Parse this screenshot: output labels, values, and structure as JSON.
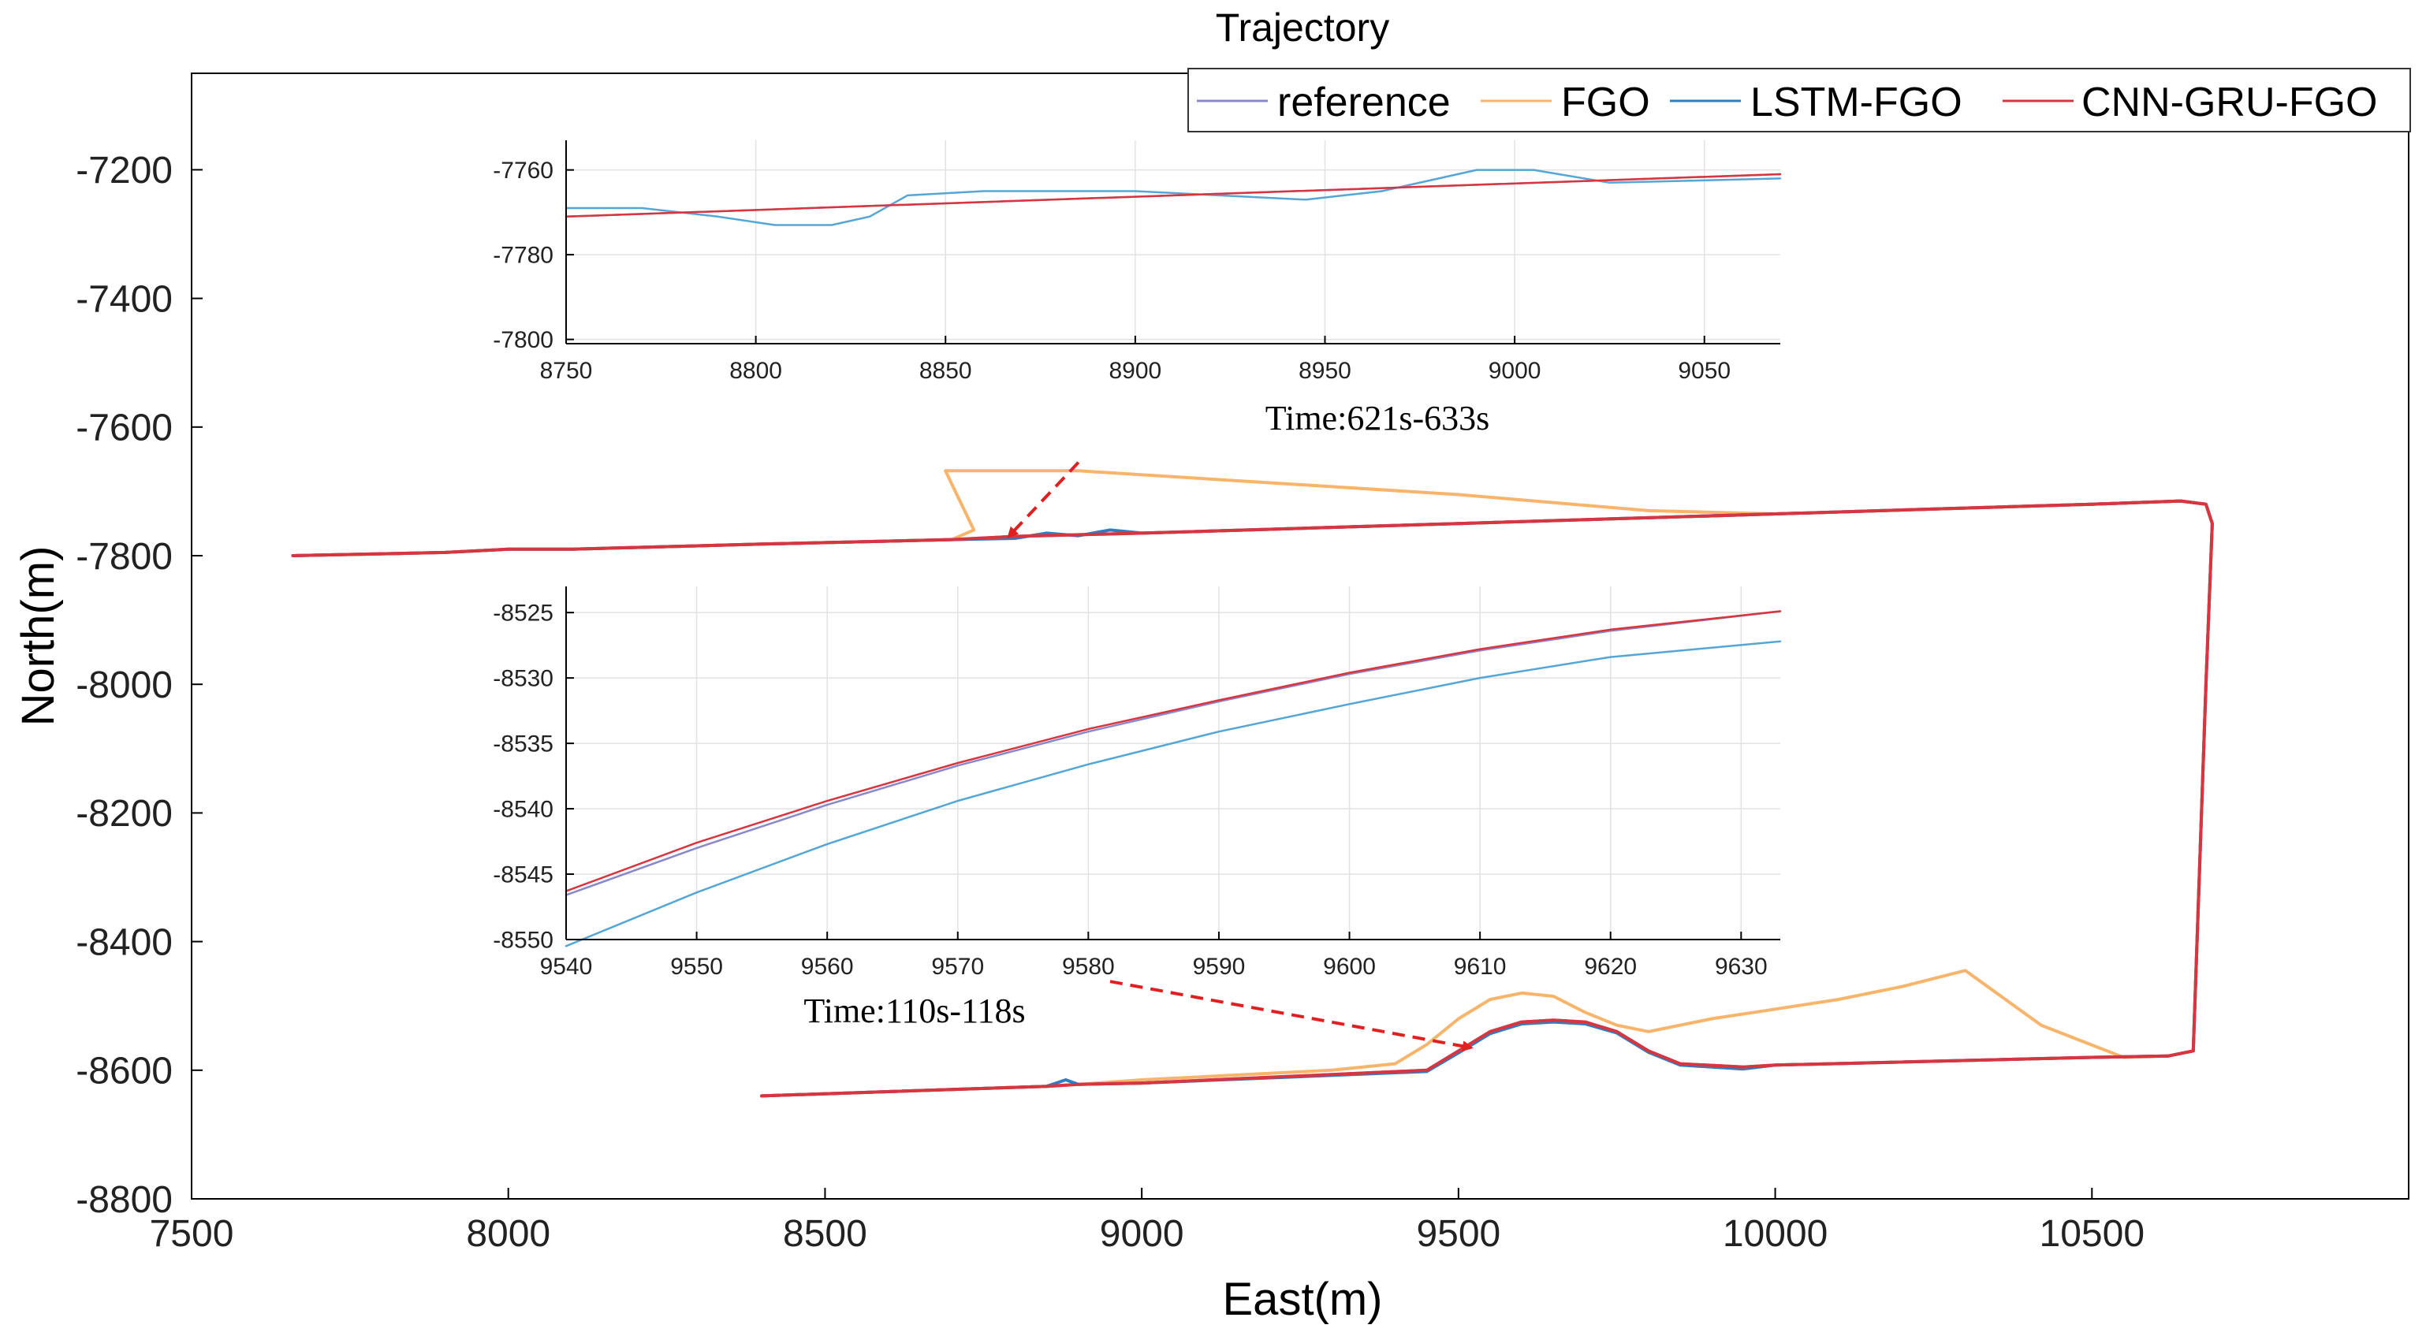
{
  "chart_data": [
    {
      "id": "main",
      "type": "line",
      "title": "Trajectory",
      "xlabel": "East(m)",
      "ylabel": "North(m)",
      "xlim": [
        7500,
        11000
      ],
      "ylim": [
        -8800,
        -7050
      ],
      "xticks": [
        7500,
        8000,
        8500,
        9000,
        9500,
        10000,
        10500
      ],
      "yticks": [
        -7200,
        -7400,
        -7600,
        -7800,
        -8000,
        -8200,
        -8400,
        -8600,
        -8800
      ],
      "grid": false,
      "legend": {
        "placement": "top-right",
        "orientation": "horizontal",
        "entries": [
          "reference",
          "FGO",
          "LSTM-FGO",
          "CNN-GRU-FGO"
        ]
      },
      "series": [
        {
          "name": "reference",
          "color": "#8888cc",
          "x": [
            7660,
            7900,
            8000,
            8100,
            8400,
            8700,
            8800,
            9000,
            9500,
            10000,
            10500,
            10640,
            10680,
            10690,
            10680,
            10660,
            10620,
            10500,
            10000,
            9950,
            9850,
            9800,
            9750,
            9700,
            9650,
            9600,
            9550,
            9500,
            9450,
            9000,
            8900,
            8850,
            8400
          ],
          "y": [
            -7800,
            -7795,
            -7790,
            -7790,
            -7782,
            -7775,
            -7770,
            -7765,
            -7750,
            -7735,
            -7720,
            -7715,
            -7720,
            -7750,
            -8000,
            -8570,
            -8578,
            -8580,
            -8592,
            -8595,
            -8590,
            -8570,
            -8540,
            -8525,
            -8522,
            -8525,
            -8540,
            -8570,
            -8600,
            -8620,
            -8622,
            -8625,
            -8640
          ]
        },
        {
          "name": "FGO",
          "color": "#f7b46a",
          "x": [
            7660,
            7900,
            8000,
            8100,
            8400,
            8700,
            8735,
            8690,
            8900,
            9500,
            9800,
            10000,
            10500,
            10640,
            10680,
            10690,
            10680,
            10660,
            10620,
            10550,
            10420,
            10300,
            10200,
            10100,
            10000,
            9900,
            9800,
            9750,
            9700,
            9650,
            9600,
            9550,
            9500,
            9450,
            9400,
            9300,
            9000,
            8900,
            8850,
            8400
          ],
          "y": [
            -7800,
            -7795,
            -7790,
            -7790,
            -7782,
            -7775,
            -7760,
            -7668,
            -7668,
            -7705,
            -7730,
            -7735,
            -7720,
            -7715,
            -7720,
            -7750,
            -8000,
            -8570,
            -8578,
            -8580,
            -8530,
            -8445,
            -8470,
            -8490,
            -8505,
            -8520,
            -8540,
            -8530,
            -8510,
            -8485,
            -8480,
            -8490,
            -8520,
            -8560,
            -8590,
            -8600,
            -8615,
            -8622,
            -8625,
            -8640
          ]
        },
        {
          "name": "LSTM-FGO",
          "color": "#2e7fc1",
          "x": [
            7660,
            7900,
            8000,
            8100,
            8400,
            8700,
            8800,
            8850,
            8900,
            8950,
            9000,
            9500,
            10000,
            10500,
            10640,
            10680,
            10690,
            10680,
            10660,
            10620,
            10500,
            10000,
            9950,
            9850,
            9800,
            9750,
            9700,
            9650,
            9600,
            9550,
            9500,
            9450,
            9000,
            8900,
            8880,
            8850,
            8400
          ],
          "y": [
            -7800,
            -7795,
            -7790,
            -7790,
            -7782,
            -7775,
            -7773,
            -7765,
            -7769,
            -7760,
            -7765,
            -7750,
            -7735,
            -7720,
            -7715,
            -7720,
            -7750,
            -8000,
            -8570,
            -8578,
            -8580,
            -8592,
            -8598,
            -8592,
            -8572,
            -8542,
            -8528,
            -8525,
            -8528,
            -8543,
            -8573,
            -8602,
            -8620,
            -8622,
            -8615,
            -8625,
            -8640
          ]
        },
        {
          "name": "CNN-GRU-FGO",
          "color": "#d9353f",
          "x": [
            7660,
            7900,
            8000,
            8100,
            8400,
            8700,
            8800,
            9000,
            9500,
            10000,
            10500,
            10640,
            10680,
            10690,
            10680,
            10660,
            10620,
            10500,
            10000,
            9950,
            9850,
            9800,
            9750,
            9700,
            9650,
            9600,
            9550,
            9500,
            9450,
            9000,
            8900,
            8850,
            8400
          ],
          "y": [
            -7800,
            -7795,
            -7790,
            -7790,
            -7782,
            -7775,
            -7770,
            -7765,
            -7750,
            -7735,
            -7720,
            -7715,
            -7720,
            -7750,
            -8000,
            -8570,
            -8578,
            -8580,
            -8592,
            -8595,
            -8590,
            -8570,
            -8540,
            -8525,
            -8522,
            -8525,
            -8540,
            -8570,
            -8600,
            -8620,
            -8622,
            -8625,
            -8640
          ]
        }
      ],
      "annotations": [
        {
          "text": "Time:621s-633s",
          "arrow_from": [
            8900,
            -7655
          ],
          "arrow_to": [
            8790,
            -7770
          ]
        },
        {
          "text": "Time:110s-118s",
          "arrow_from": [
            8950,
            -8462
          ],
          "arrow_to": [
            9520,
            -8565
          ]
        }
      ]
    },
    {
      "id": "inset-top",
      "type": "line",
      "title": "",
      "xlabel": "",
      "ylabel": "",
      "xlim": [
        8750,
        9070
      ],
      "ylim": [
        -7801,
        -7753
      ],
      "xticks": [
        8750,
        8800,
        8850,
        8900,
        8950,
        9000,
        9050
      ],
      "yticks": [
        -7760,
        -7780,
        -7800
      ],
      "grid": true,
      "series": [
        {
          "name": "reference",
          "color": "#8888cc",
          "x": [
            8750,
            9070
          ],
          "y": [
            -7771,
            -7761
          ]
        },
        {
          "name": "LSTM-FGO",
          "color": "#53a6d6",
          "x": [
            8750,
            8770,
            8790,
            8805,
            8820,
            8830,
            8840,
            8860,
            8900,
            8945,
            8965,
            8990,
            9005,
            9025,
            9070
          ],
          "y": [
            -7769,
            -7769,
            -7771,
            -7773,
            -7773,
            -7771,
            -7766,
            -7765,
            -7765,
            -7767,
            -7765,
            -7760,
            -7760,
            -7763,
            -7762
          ]
        },
        {
          "name": "CNN-GRU-FGO",
          "color": "#d9353f",
          "x": [
            8750,
            9070
          ],
          "y": [
            -7771,
            -7761
          ]
        }
      ]
    },
    {
      "id": "inset-bottom",
      "type": "line",
      "title": "",
      "xlabel": "",
      "ylabel": "",
      "xlim": [
        9540,
        9633
      ],
      "ylim": [
        -8550,
        -8523
      ],
      "xticks": [
        9540,
        9550,
        9560,
        9570,
        9580,
        9590,
        9600,
        9610,
        9620,
        9630
      ],
      "yticks": [
        -8525,
        -8530,
        -8535,
        -8540,
        -8545,
        -8550
      ],
      "grid": true,
      "series": [
        {
          "name": "reference",
          "color": "#8888cc",
          "x": [
            9540,
            9550,
            9560,
            9570,
            9580,
            9590,
            9600,
            9610,
            9620,
            9633
          ],
          "y": [
            -8546.6,
            -8543,
            -8539.7,
            -8536.7,
            -8534.1,
            -8531.8,
            -8529.7,
            -8527.9,
            -8526.4,
            -8524.9
          ]
        },
        {
          "name": "LSTM-FGO",
          "color": "#53a6d6",
          "x": [
            9540,
            9550,
            9560,
            9570,
            9580,
            9590,
            9600,
            9610,
            9620,
            9633
          ],
          "y": [
            -8550.5,
            -8546.4,
            -8542.7,
            -8539.4,
            -8536.6,
            -8534.1,
            -8532,
            -8530,
            -8528.4,
            -8527.2
          ]
        },
        {
          "name": "CNN-GRU-FGO",
          "color": "#d9353f",
          "x": [
            9540,
            9550,
            9560,
            9570,
            9580,
            9590,
            9600,
            9610,
            9620,
            9633
          ],
          "y": [
            -8546.3,
            -8542.6,
            -8539.4,
            -8536.5,
            -8533.9,
            -8531.7,
            -8529.6,
            -8527.8,
            -8526.3,
            -8524.9
          ]
        }
      ]
    }
  ]
}
